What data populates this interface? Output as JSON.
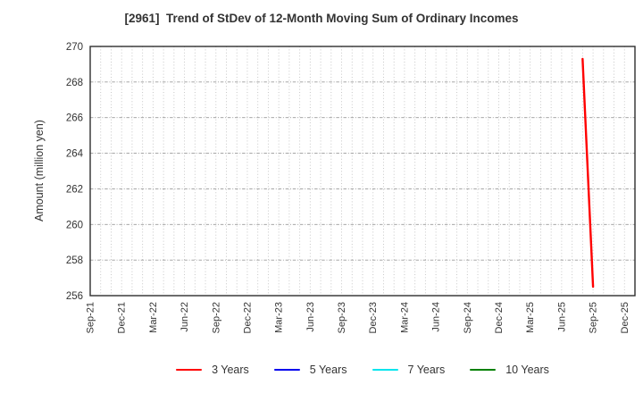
{
  "chart_data": {
    "type": "line",
    "title": "[2961]  Trend of StDev of 12-Month Moving Sum of Ordinary Incomes",
    "ylabel": "Amount (million yen)",
    "xlabel": "",
    "ylim": [
      256,
      270
    ],
    "ytick_step": 2,
    "ytick_labels": [
      "256",
      "258",
      "260",
      "262",
      "264",
      "266",
      "268",
      "270"
    ],
    "xtick_labels": [
      "Sep-21",
      "Dec-21",
      "Mar-22",
      "Jun-22",
      "Sep-22",
      "Dec-22",
      "Mar-23",
      "Jun-23",
      "Sep-23",
      "Dec-23",
      "Mar-24",
      "Jun-24",
      "Sep-24",
      "Dec-24",
      "Mar-25",
      "Jun-25",
      "Sep-25",
      "Dec-25"
    ],
    "months_per_xtick": 3,
    "total_months_span": 52,
    "grid": {
      "vertical_style": "monthly-dotted",
      "horizontal_style": "major-dashed",
      "vertical_color": "#c2c2c2",
      "horizontal_color": "#9a9a9a"
    },
    "axis_color": "#2e2e2e",
    "text_color": "#333333",
    "background_color": "#ffffff",
    "legend_position": "bottom-center",
    "series": [
      {
        "name": "3 Years",
        "color": "#ff0000",
        "points": [
          [
            "Aug-25",
            269.3
          ],
          [
            "Sep-25",
            256.5
          ]
        ]
      },
      {
        "name": "5 Years",
        "color": "#0000ee",
        "points": []
      },
      {
        "name": "7 Years",
        "color": "#00e5ee",
        "points": []
      },
      {
        "name": "10 Years",
        "color": "#008000",
        "points": []
      }
    ]
  }
}
